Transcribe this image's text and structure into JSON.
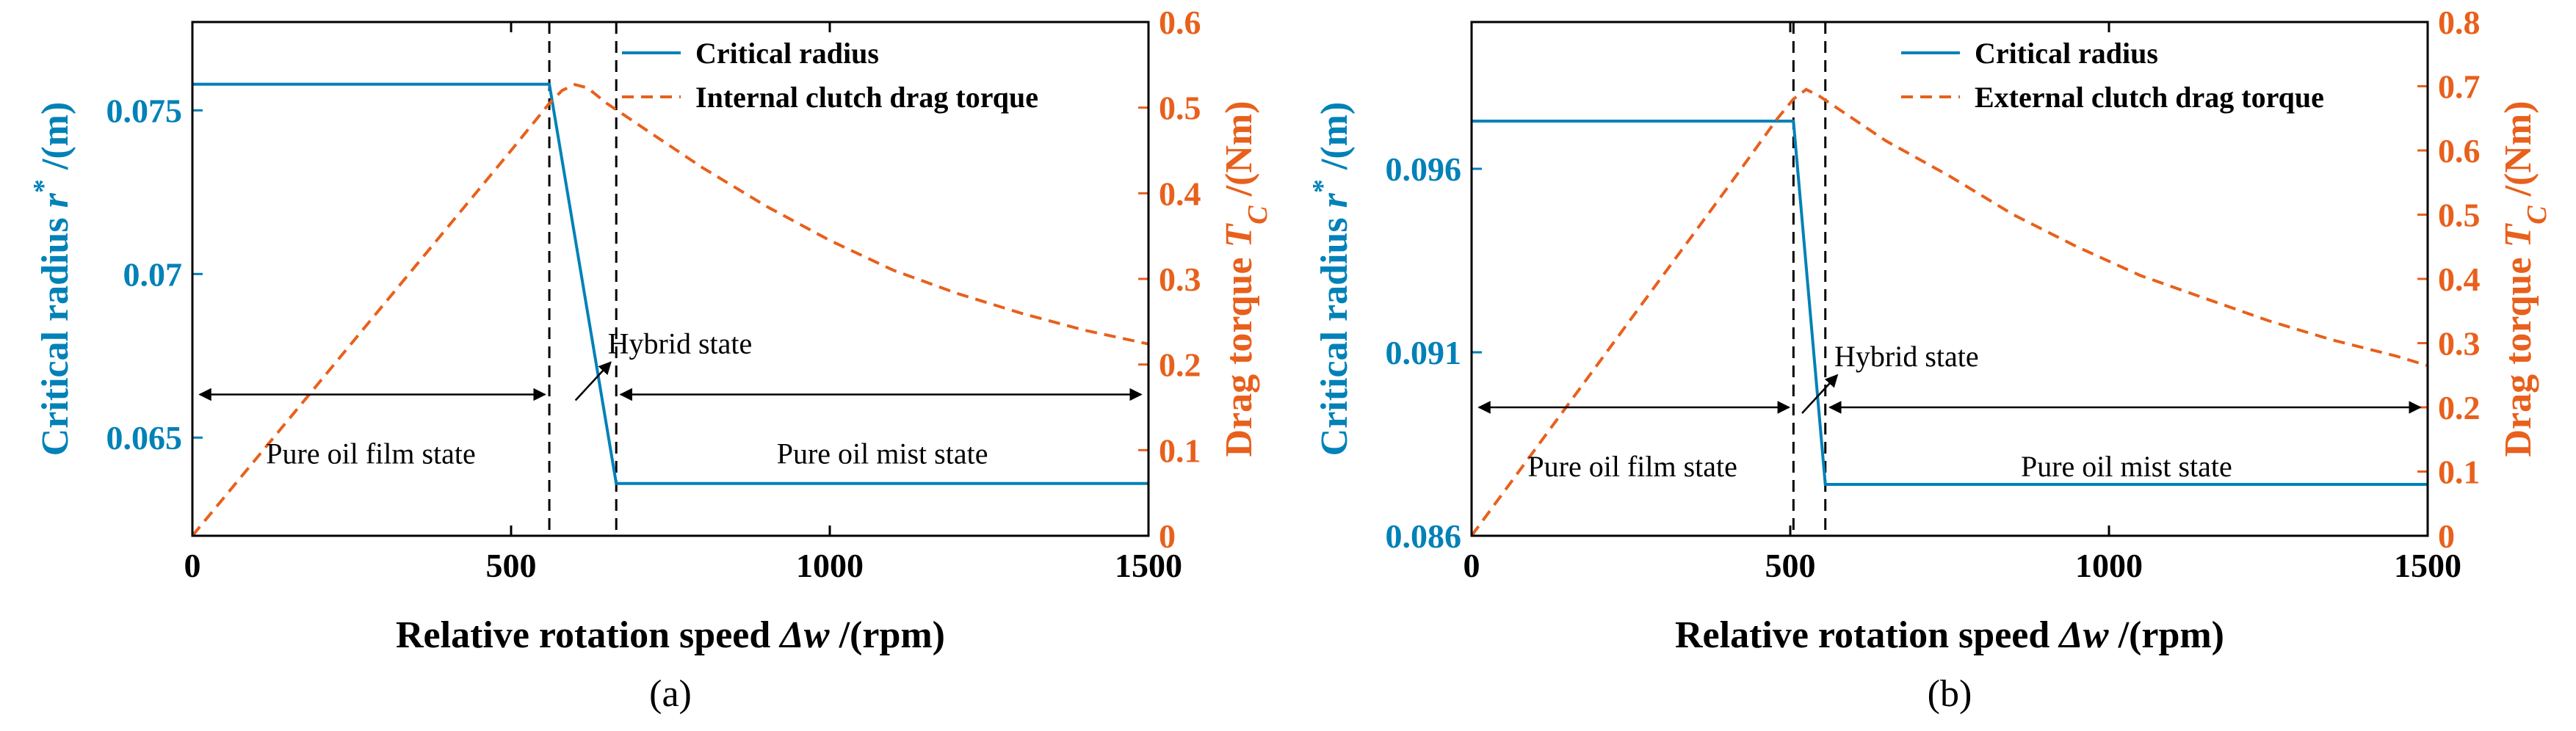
{
  "colors": {
    "left_axis": "#0081B8",
    "right_axis": "#E8601C",
    "frame": "#000000"
  },
  "chart_data": [
    {
      "type": "line",
      "panel_label": "(a)",
      "xlabel_main": "Relative rotation speed ",
      "xlabel_symbol": "Δw",
      "xlabel_unit": " /(rpm)",
      "ylabel_left_main": "Critical radius ",
      "ylabel_left_symbol": "r",
      "ylabel_left_sup": "*",
      "ylabel_left_unit": " /(m)",
      "ylabel_right_main": "Drag torque ",
      "ylabel_right_symbol": "T",
      "ylabel_right_sub": "C",
      "ylabel_right_unit": " /(Nm)",
      "xlim": [
        0,
        1500
      ],
      "ylim_left": [
        0.062,
        0.0777
      ],
      "ylim_right": [
        0,
        0.6
      ],
      "x_ticks": [
        0,
        500,
        1000,
        1500
      ],
      "x_tick_labels": [
        "0",
        "500",
        "1000",
        "1500"
      ],
      "y_left_ticks": [
        0.065,
        0.07,
        0.075
      ],
      "y_left_tick_labels": [
        "0.065",
        "0.07",
        "0.075"
      ],
      "y_right_ticks": [
        0,
        0.1,
        0.2,
        0.3,
        0.4,
        0.5,
        0.6
      ],
      "y_right_tick_labels": [
        "0",
        "0.1",
        "0.2",
        "0.3",
        "0.4",
        "0.5",
        "0.6"
      ],
      "series": [
        {
          "name": "Critical radius",
          "axis": "left",
          "style": "solid",
          "x": [
            0,
            560,
            665,
            1500
          ],
          "y": [
            0.0758,
            0.0758,
            0.0636,
            0.0636
          ]
        },
        {
          "name": "Internal clutch drag torque",
          "axis": "right",
          "style": "dashed",
          "x": [
            0,
            100,
            200,
            300,
            400,
            500,
            560,
            580,
            600,
            620,
            650,
            700,
            800,
            900,
            1000,
            1100,
            1200,
            1300,
            1400,
            1500
          ],
          "y": [
            0,
            0.09,
            0.18,
            0.27,
            0.36,
            0.45,
            0.505,
            0.52,
            0.527,
            0.523,
            0.505,
            0.48,
            0.43,
            0.385,
            0.345,
            0.31,
            0.283,
            0.26,
            0.24,
            0.224
          ]
        }
      ],
      "vlines_x": [
        560,
        665
      ],
      "annotations": {
        "hybrid": "Hybrid state",
        "film": "Pure oil film state",
        "mist": "Pure oil mist state",
        "arrow_y_right": 0.165
      }
    },
    {
      "type": "line",
      "panel_label": "(b)",
      "xlabel_main": "Relative rotation speed ",
      "xlabel_symbol": "Δw",
      "xlabel_unit": " /(rpm)",
      "ylabel_left_main": "Critical radius ",
      "ylabel_left_symbol": "r",
      "ylabel_left_sup": "*",
      "ylabel_left_unit": " /(m)",
      "ylabel_right_main": "Drag torque ",
      "ylabel_right_symbol": "T",
      "ylabel_right_sub": "C",
      "ylabel_right_unit": " /(Nm)",
      "xlim": [
        0,
        1500
      ],
      "ylim_left": [
        0.086,
        0.1
      ],
      "ylim_right": [
        0,
        0.8
      ],
      "x_ticks": [
        0,
        500,
        1000,
        1500
      ],
      "x_tick_labels": [
        "0",
        "500",
        "1000",
        "1500"
      ],
      "y_left_ticks": [
        0.086,
        0.091,
        0.096
      ],
      "y_left_tick_labels": [
        "0.086",
        "0.091",
        "0.096"
      ],
      "y_right_ticks": [
        0,
        0.1,
        0.2,
        0.3,
        0.4,
        0.5,
        0.6,
        0.7,
        0.8
      ],
      "y_right_tick_labels": [
        "0",
        "0.1",
        "0.2",
        "0.3",
        "0.4",
        "0.5",
        "0.6",
        "0.7",
        "0.8"
      ],
      "series": [
        {
          "name": "Critical radius",
          "axis": "left",
          "style": "solid",
          "x": [
            0,
            505,
            555,
            1500
          ],
          "y": [
            0.0973,
            0.0973,
            0.0874,
            0.0874
          ]
        },
        {
          "name": "External clutch drag torque",
          "axis": "right",
          "style": "dashed",
          "x": [
            0,
            100,
            200,
            300,
            400,
            480,
            505,
            525,
            545,
            575,
            650,
            750,
            850,
            950,
            1050,
            1150,
            1250,
            1350,
            1450,
            1500
          ],
          "y": [
            0,
            0.135,
            0.27,
            0.405,
            0.54,
            0.65,
            0.68,
            0.695,
            0.685,
            0.665,
            0.615,
            0.56,
            0.5,
            0.45,
            0.405,
            0.37,
            0.335,
            0.305,
            0.28,
            0.265
          ]
        }
      ],
      "vlines_x": [
        505,
        555
      ],
      "annotations": {
        "hybrid": "Hybrid state",
        "film": "Pure oil film state",
        "mist": "Pure oil mist state",
        "arrow_y_right": 0.2
      }
    }
  ]
}
